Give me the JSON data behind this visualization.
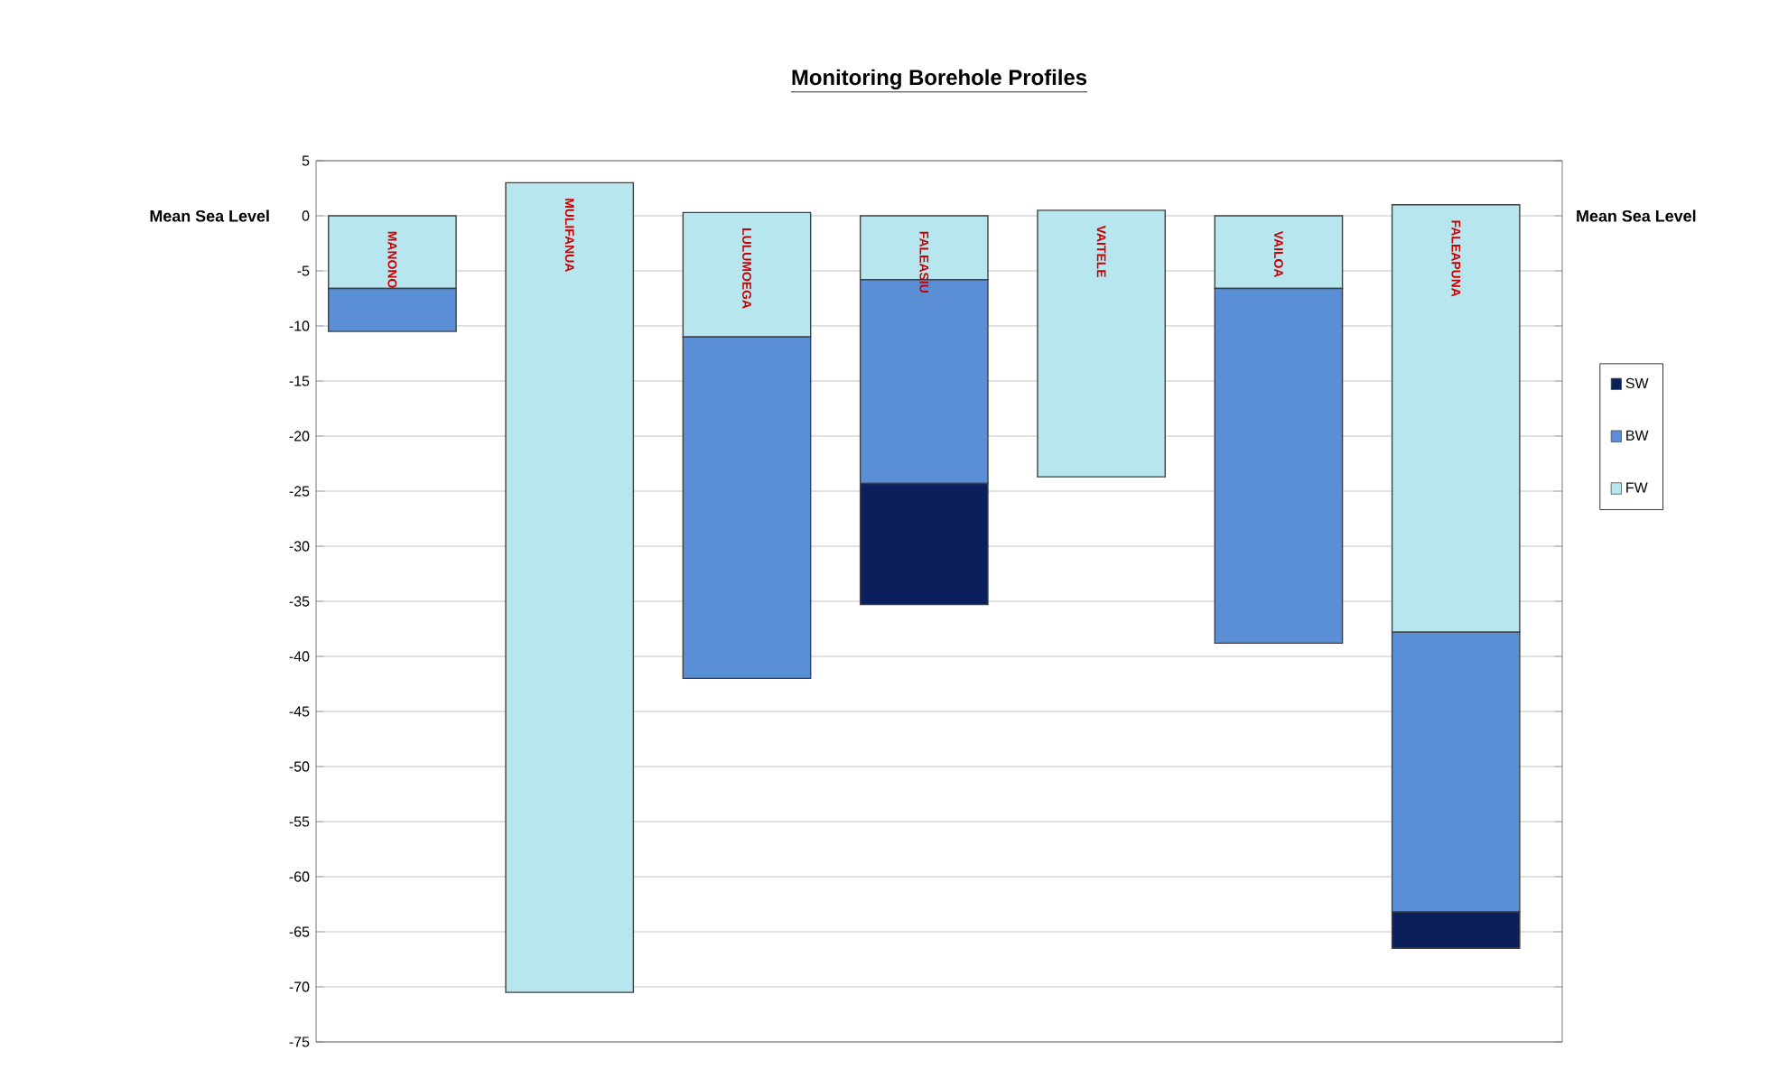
{
  "chart_data": {
    "type": "bar",
    "title": "Monitoring Borehole Profiles",
    "categories": [
      "MANONO",
      "MULIFANUA",
      "LULUMOEGA",
      "FALEASIU",
      "VAITELE",
      "VAILOA",
      "FALEAPUNA"
    ],
    "series": [
      {
        "name": "FW",
        "color": "#b7e6ee",
        "base": [
          0,
          3,
          0.3,
          0,
          0.5,
          0,
          1
        ],
        "values": [
          -6.6,
          -73.5,
          -11.3,
          -5.8,
          -24.2,
          -6.6,
          -38.8
        ]
      },
      {
        "name": "BW",
        "color": "#5a8fd6",
        "base": [
          -6.6,
          null,
          -11,
          -5.8,
          null,
          -6.6,
          -37.8
        ],
        "values": [
          -3.9,
          null,
          -31,
          -18.5,
          null,
          -32.2,
          -25.4
        ]
      },
      {
        "name": "SW",
        "color": "#0a1f5c",
        "base": [
          null,
          null,
          null,
          -24.3,
          null,
          null,
          -63.2
        ],
        "values": [
          null,
          null,
          null,
          -11,
          null,
          null,
          -3.3
        ]
      }
    ],
    "ylim": [
      -75,
      5
    ],
    "yticks": [
      5,
      0,
      -5,
      -10,
      -15,
      -20,
      -25,
      -30,
      -35,
      -40,
      -45,
      -50,
      -55,
      -60,
      -65,
      -70,
      -75
    ],
    "grid": "y",
    "legend": "right",
    "tick_labels": "y",
    "annotations": [
      "Mean Sea Level",
      "Mean Sea Level"
    ]
  }
}
